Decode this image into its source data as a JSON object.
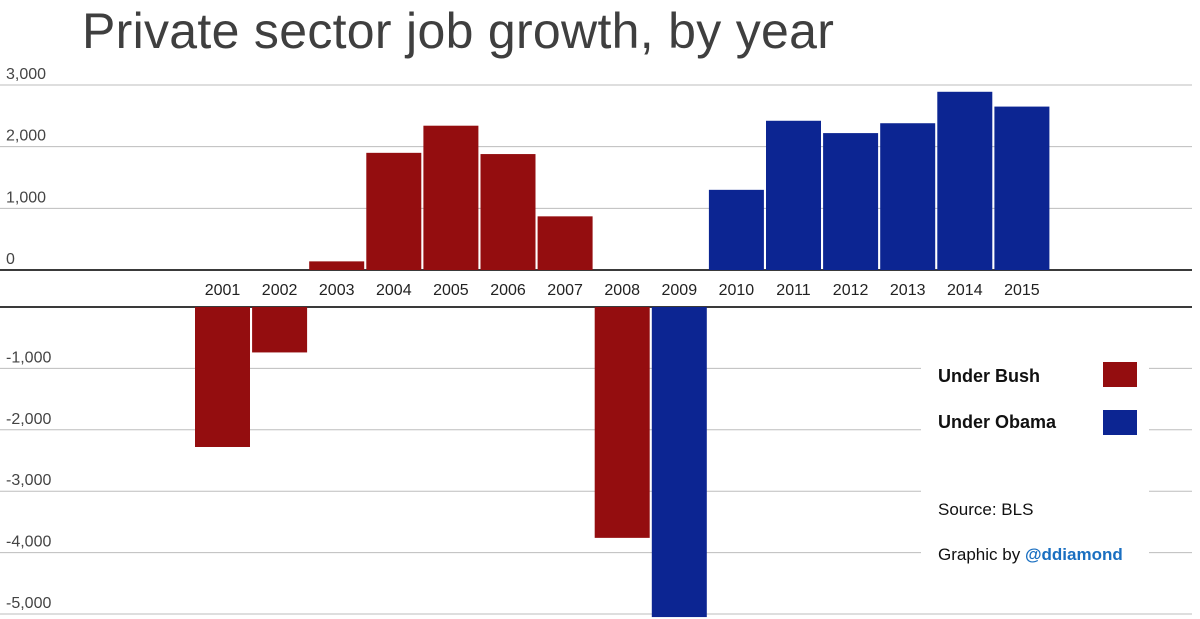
{
  "chart_data": {
    "type": "bar",
    "title": "Private sector job growth, by year",
    "categories": [
      "2001",
      "2002",
      "2003",
      "2004",
      "2005",
      "2006",
      "2007",
      "2008",
      "2009",
      "2010",
      "2011",
      "2012",
      "2013",
      "2014",
      "2015"
    ],
    "values": [
      -2280,
      -740,
      140,
      1900,
      2340,
      1880,
      870,
      -3760,
      -5050,
      1300,
      2420,
      2220,
      2380,
      2890,
      2650
    ],
    "president": [
      "Bush",
      "Bush",
      "Bush",
      "Bush",
      "Bush",
      "Bush",
      "Bush",
      "Bush",
      "Obama",
      "Obama",
      "Obama",
      "Obama",
      "Obama",
      "Obama",
      "Obama"
    ],
    "ylim": [
      -5000,
      3000
    ],
    "yticks": [
      3000,
      2000,
      1000,
      0,
      -1000,
      -2000,
      -3000,
      -4000,
      -5000
    ],
    "ytick_labels": [
      "3,000",
      "2,000",
      "1,000",
      "0",
      "-1,000",
      "-2,000",
      "-3,000",
      "-4,000",
      "-5,000"
    ],
    "xlabel": "",
    "ylabel": "",
    "grid": true,
    "series": [
      {
        "name": "Under Bush",
        "color": "#940d0f"
      },
      {
        "name": "Under Obama",
        "color": "#0c2592"
      }
    ],
    "legend_position": "right"
  },
  "notes": {
    "source": "Source: BLS",
    "credit_prefix": "Graphic by ",
    "credit_handle": "@ddiamond"
  },
  "colors": {
    "bush": "#940d0f",
    "obama": "#0c2592",
    "handle": "#1a6fc1"
  }
}
